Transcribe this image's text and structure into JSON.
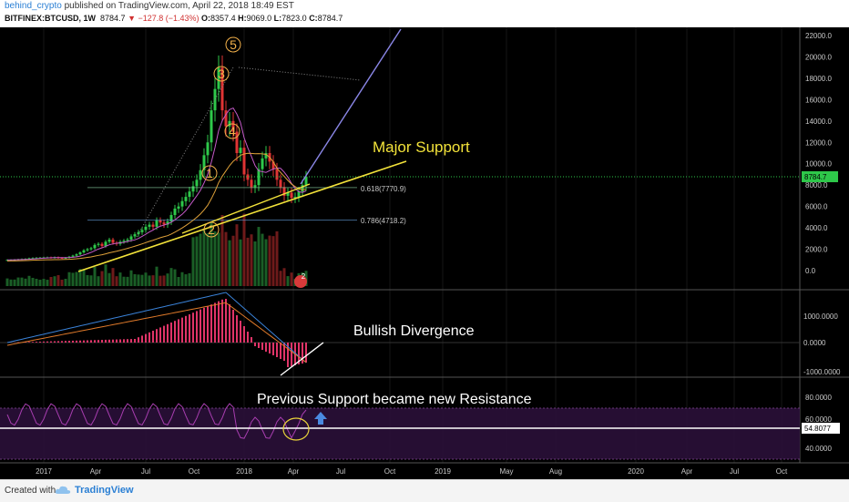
{
  "header": {
    "author": "behind_crypto",
    "published": " published on TradingView.com, April 22, 2018 18:49 EST",
    "symbol": "BITFINEX:BTCUSD, 1W",
    "last": "8784.7",
    "change": "▼ −127.8 (−1.43%)",
    "ohlc_o_label": "O:",
    "ohlc_o": "8357.4",
    "ohlc_h_label": "H:",
    "ohlc_h": "9069.0",
    "ohlc_l_label": "L:",
    "ohlc_l": "7823.0",
    "ohlc_c_label": "C:",
    "ohlc_c": "8784.7"
  },
  "footer": {
    "created_with": "Created with",
    "brand": "TradingView"
  },
  "colors": {
    "background": "#000000",
    "up": "#2ec84a",
    "down": "#e03434",
    "support_line": "#f2e23a",
    "projection_line": "#8a86e6",
    "fib_618": "#8fd6a8",
    "fib_786": "#6aa8e8",
    "price_label": "#2ec84a",
    "wave_labels": "#f2b04a",
    "macd_hist": "#e03468",
    "rsi_line": "#a83eb0",
    "rsi_band": "#2a1038"
  },
  "chart_data": {
    "type": "candlestick",
    "price_axis": [
      "22000.0",
      "20000.0",
      "18000.0",
      "16000.0",
      "14000.0",
      "12000.0",
      "10000.0",
      "8000.0",
      "6000.0",
      "4000.0",
      "2000.0",
      "0.0"
    ],
    "price_ylim": [
      -1000,
      23000
    ],
    "last_price": "8784.7",
    "time_axis": [
      "2017",
      "Apr",
      "Jul",
      "Oct",
      "2018",
      "Apr",
      "Jul",
      "Oct",
      "2019",
      "May",
      "Aug",
      "2020",
      "Apr",
      "Jul",
      "Oct"
    ],
    "close_series": [
      1000,
      1010,
      1020,
      1050,
      1080,
      1100,
      1150,
      1180,
      1200,
      1210,
      1230,
      1240,
      1200,
      1250,
      1190,
      1180,
      1200,
      1300,
      1400,
      1520,
      1700,
      1900,
      2000,
      2100,
      2400,
      2500,
      2300,
      2700,
      2900,
      2600,
      2500,
      2700,
      2800,
      2900,
      3200,
      3400,
      3600,
      3800,
      4100,
      4300,
      4100,
      4700,
      4500,
      4300,
      4600,
      5200,
      5800,
      6000,
      6500,
      6900,
      7400,
      7900,
      8500,
      9400,
      10800,
      12000,
      15000,
      17000,
      19000,
      15000,
      13500,
      14000,
      13000,
      11000,
      11500,
      9000,
      8500,
      7800,
      8000,
      9500,
      10500,
      11000,
      10200,
      9500,
      8500,
      7800,
      7000,
      7300,
      6800,
      6900,
      7400,
      8000,
      8784.7
    ],
    "fib_levels": [
      {
        "label": "0.618(7770.9)",
        "value": 7770.9
      },
      {
        "label": "0.786(4718.2)",
        "value": 4718.2
      }
    ],
    "wave_labels": [
      "1",
      "2",
      "3",
      "4",
      "5"
    ],
    "macd_axis": [
      "1000.0000",
      "0.0000",
      "-1000.0000"
    ],
    "rsi_axis": [
      "80.0000",
      "60.0000",
      "40.0000"
    ],
    "rsi_last": "54.8077",
    "annotations": {
      "support": "Major Support",
      "divergence": "Bullish Divergence",
      "resistance": "Previous Support became new Resistance"
    },
    "badge": "2"
  }
}
